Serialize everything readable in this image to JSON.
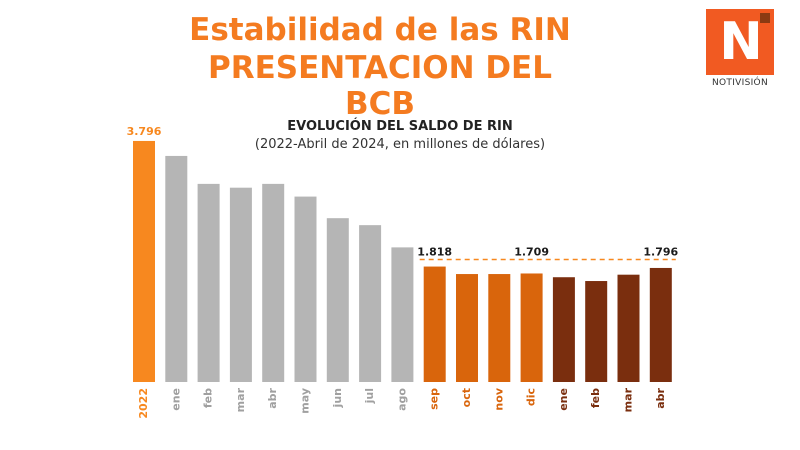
{
  "header": {
    "title_line1": "Estabilidad de las RIN",
    "title_line2": "PRESENTACION DEL BCB"
  },
  "logo": {
    "letter": "N",
    "caption": "NOTIVISIÓN",
    "color": "#f15a22"
  },
  "chart_data": {
    "type": "bar",
    "title": "EVOLUCIÓN DEL SALDO DE RIN",
    "subtitle": "(2022-Abril de 2024, en millones de dólares)",
    "xlabel": "",
    "ylabel": "",
    "ylim": [
      0,
      4000
    ],
    "grid": false,
    "categories": [
      "2022",
      "ene",
      "feb",
      "mar",
      "abr",
      "may",
      "jun",
      "jul",
      "ago",
      "sep",
      "oct",
      "nov",
      "dic",
      "ene",
      "feb",
      "mar",
      "abr"
    ],
    "values": [
      3796,
      3560,
      3120,
      3060,
      3120,
      2920,
      2580,
      2470,
      2120,
      1818,
      1700,
      1700,
      1709,
      1650,
      1590,
      1690,
      1796
    ],
    "data_labels": [
      "3.796",
      "",
      "",
      "",
      "",
      "",
      "",
      "",
      "",
      "1.818",
      "",
      "",
      "1.709",
      "",
      "",
      "",
      "1.796"
    ],
    "bar_colors": [
      "#f7881f",
      "#b5b5b5",
      "#b5b5b5",
      "#b5b5b5",
      "#b5b5b5",
      "#b5b5b5",
      "#b5b5b5",
      "#b5b5b5",
      "#b5b5b5",
      "#d9650c",
      "#d9650c",
      "#d9650c",
      "#d9650c",
      "#7a2e0e",
      "#7a2e0e",
      "#7a2e0e",
      "#7a2e0e"
    ],
    "label_colors": [
      "#f7881f",
      "#a0a0a0",
      "#a0a0a0",
      "#a0a0a0",
      "#a0a0a0",
      "#a0a0a0",
      "#a0a0a0",
      "#a0a0a0",
      "#a0a0a0",
      "#d9650c",
      "#d9650c",
      "#d9650c",
      "#d9650c",
      "#7a2e0e",
      "#7a2e0e",
      "#7a2e0e",
      "#7a2e0e"
    ],
    "reference_line": {
      "value": 1818,
      "style": "dashed",
      "color": "#f7881f"
    }
  }
}
